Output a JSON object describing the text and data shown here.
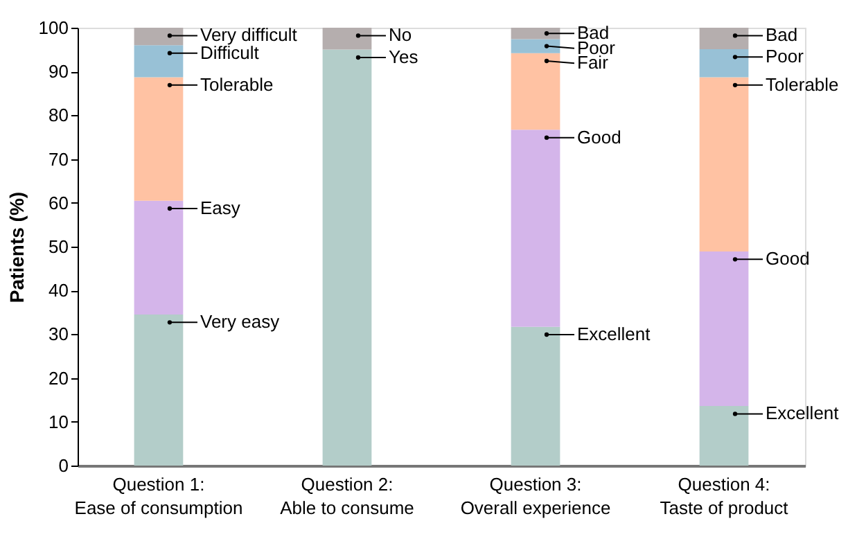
{
  "chart_data": {
    "type": "bar",
    "stacked": true,
    "ylabel": "Patients (%)",
    "categories": [
      "Question 1:\nEase of consumption",
      "Question 2:\nAble to consume",
      "Question 3:\nOverall experience",
      "Question 4:\nTaste of product"
    ],
    "series": [
      {
        "name": "Very easy",
        "color": "#b3cdc9",
        "values": [
          34.5,
          null,
          null,
          null
        ]
      },
      {
        "name": "Easy",
        "color": "#d4b5ea",
        "values": [
          26,
          null,
          null,
          null
        ]
      },
      {
        "name": "Tolerable",
        "color": "#ffc2a3",
        "values": [
          28.2,
          null,
          null,
          null
        ]
      },
      {
        "name": "Difficult",
        "color": "#98c1d6",
        "values": [
          7.3,
          null,
          null,
          null
        ]
      },
      {
        "name": "Very difficult",
        "color": "#b5aeae",
        "values": [
          4,
          null,
          null,
          null
        ]
      },
      {
        "name": "Yes",
        "color": "#b3cdc9",
        "values": [
          null,
          95,
          null,
          null
        ]
      },
      {
        "name": "No",
        "color": "#b5aeae",
        "values": [
          null,
          5,
          null,
          null
        ]
      },
      {
        "name": "Excellent",
        "color": "#b3cdc9",
        "values": [
          null,
          null,
          31.7,
          null
        ]
      },
      {
        "name": "Good",
        "color": "#d4b5ea",
        "values": [
          null,
          null,
          45,
          null
        ]
      },
      {
        "name": "Fair",
        "color": "#ffc2a3",
        "values": [
          null,
          null,
          17.5,
          null
        ]
      },
      {
        "name": "Poor",
        "color": "#98c1d6",
        "values": [
          null,
          null,
          3.2,
          null
        ]
      },
      {
        "name": "Bad",
        "color": "#b5aeae",
        "values": [
          null,
          null,
          2.6,
          null
        ]
      },
      {
        "name": "Excellent",
        "color": "#b3cdc9",
        "values": [
          null,
          null,
          null,
          13.6
        ]
      },
      {
        "name": "Good",
        "color": "#d4b5ea",
        "values": [
          null,
          null,
          null,
          35.3
        ]
      },
      {
        "name": "Tolerable",
        "color": "#ffc2a3",
        "values": [
          null,
          null,
          null,
          39.8
        ]
      },
      {
        "name": "Poor",
        "color": "#98c1d6",
        "values": [
          null,
          null,
          null,
          6.4
        ]
      },
      {
        "name": "Bad",
        "color": "#b5aeae",
        "values": [
          null,
          null,
          null,
          4.9
        ]
      }
    ],
    "ylim": [
      0,
      100
    ],
    "yticks": [
      0,
      10,
      20,
      30,
      40,
      50,
      60,
      70,
      80,
      90,
      100
    ],
    "grid": false,
    "legend": false
  }
}
